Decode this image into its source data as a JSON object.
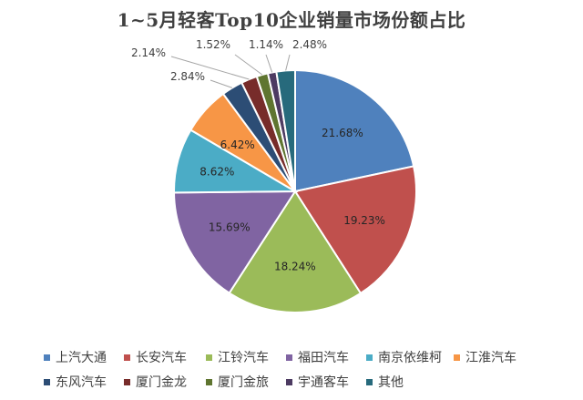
{
  "title": "1~5月轻客Top10企业销量市场份额占比",
  "chart_data": {
    "type": "pie",
    "title": "1~5月轻客Top10企业销量市场份额占比",
    "start_angle_deg": 0,
    "direction": "clockwise",
    "legend_position": "bottom",
    "slices": [
      {
        "name": "上汽大通",
        "value": 21.68,
        "label": "21.68%",
        "color": "#4F81BD"
      },
      {
        "name": "长安汽车",
        "value": 19.23,
        "label": "19.23%",
        "color": "#C0504D"
      },
      {
        "name": "江铃汽车",
        "value": 18.24,
        "label": "18.24%",
        "color": "#9BBB59"
      },
      {
        "name": "福田汽车",
        "value": 15.69,
        "label": "15.69%",
        "color": "#8064A2"
      },
      {
        "name": "南京依维柯",
        "value": 8.62,
        "label": "8.62%",
        "color": "#4BACC6"
      },
      {
        "name": "江淮汽车",
        "value": 6.42,
        "label": "6.42%",
        "color": "#F79646"
      },
      {
        "name": "东风汽车",
        "value": 2.84,
        "label": "2.84%",
        "color": "#2C4D75"
      },
      {
        "name": "厦门金龙",
        "value": 2.14,
        "label": "2.14%",
        "color": "#772C2A"
      },
      {
        "name": "厦门金旅",
        "value": 1.52,
        "label": "1.52%",
        "color": "#5F7530"
      },
      {
        "name": "宇通客车",
        "value": 1.14,
        "label": "1.14%",
        "color": "#4D3B62"
      },
      {
        "name": "其他",
        "value": 2.48,
        "label": "2.48%",
        "color": "#276A7C"
      }
    ]
  }
}
